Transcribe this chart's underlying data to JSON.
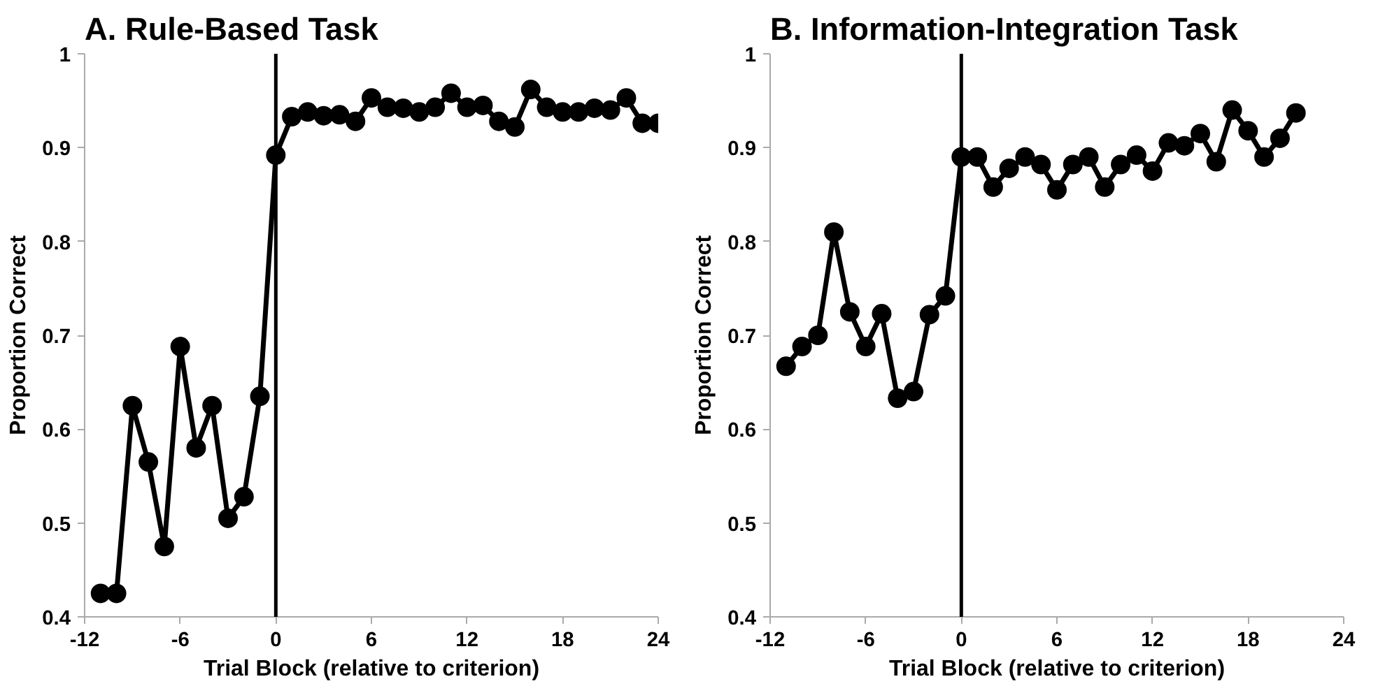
{
  "chart_data": [
    {
      "type": "line",
      "title": "A. Rule-Based Task",
      "xlabel": "Trial Block (relative to criterion)",
      "ylabel": "Proportion Correct",
      "x": [
        -11,
        -10,
        -9,
        -8,
        -7,
        -6,
        -5,
        -4,
        -3,
        -2,
        -1,
        0,
        1,
        2,
        3,
        4,
        5,
        6,
        7,
        8,
        9,
        10,
        11,
        12,
        13,
        14,
        15,
        16,
        17,
        18,
        19,
        20,
        21,
        22,
        23,
        24
      ],
      "series": [
        {
          "color": "#000000",
          "values": [
            0.425,
            0.425,
            0.625,
            0.565,
            0.475,
            0.688,
            0.58,
            0.625,
            0.505,
            0.528,
            0.635,
            0.892,
            0.933,
            0.938,
            0.934,
            0.935,
            0.928,
            0.953,
            0.943,
            0.942,
            0.938,
            0.943,
            0.958,
            0.943,
            0.945,
            0.928,
            0.922,
            0.962,
            0.943,
            0.938,
            0.938,
            0.942,
            0.94,
            0.953,
            0.926,
            0.926
          ]
        }
      ],
      "xlim": [
        -12,
        24
      ],
      "xticks": [
        -12,
        -6,
        0,
        6,
        12,
        18,
        24
      ],
      "ylim": [
        0.4,
        1
      ],
      "yticks": [
        0.4,
        0.5,
        0.6,
        0.7,
        0.8,
        0.9,
        1
      ],
      "ref_lines": [
        {
          "axis": "x",
          "value": 0,
          "label": null,
          "color": "#000000"
        }
      ],
      "grid": false,
      "marker": "circle",
      "line_style": "solid"
    },
    {
      "type": "line",
      "title": "B. Information-Integration Task",
      "xlabel": "Trial Block (relative to criterion)",
      "ylabel": "Proportion Correct",
      "x": [
        -11,
        -10,
        -9,
        -8,
        -7,
        -6,
        -5,
        -4,
        -3,
        -2,
        -1,
        0,
        1,
        2,
        3,
        4,
        5,
        6,
        7,
        8,
        9,
        10,
        11,
        12,
        13,
        14,
        15,
        16,
        17,
        18,
        19,
        20,
        21
      ],
      "series": [
        {
          "color": "#000000",
          "values": [
            0.667,
            0.688,
            0.7,
            0.81,
            0.725,
            0.688,
            0.723,
            0.633,
            0.64,
            0.722,
            0.742,
            0.89,
            0.89,
            0.858,
            0.878,
            0.89,
            0.882,
            0.855,
            0.882,
            0.89,
            0.858,
            0.882,
            0.892,
            0.875,
            0.905,
            0.902,
            0.915,
            0.885,
            0.94,
            0.918,
            0.89,
            0.91,
            0.937
          ]
        }
      ],
      "xlim": [
        -12,
        24
      ],
      "xticks": [
        -12,
        -6,
        0,
        6,
        12,
        18,
        24
      ],
      "ylim": [
        0.4,
        1
      ],
      "yticks": [
        0.4,
        0.5,
        0.6,
        0.7,
        0.8,
        0.9,
        1
      ],
      "ref_lines": [
        {
          "axis": "x",
          "value": 0,
          "label": null,
          "color": "#000000"
        }
      ],
      "grid": false,
      "marker": "circle",
      "line_style": "solid"
    }
  ]
}
